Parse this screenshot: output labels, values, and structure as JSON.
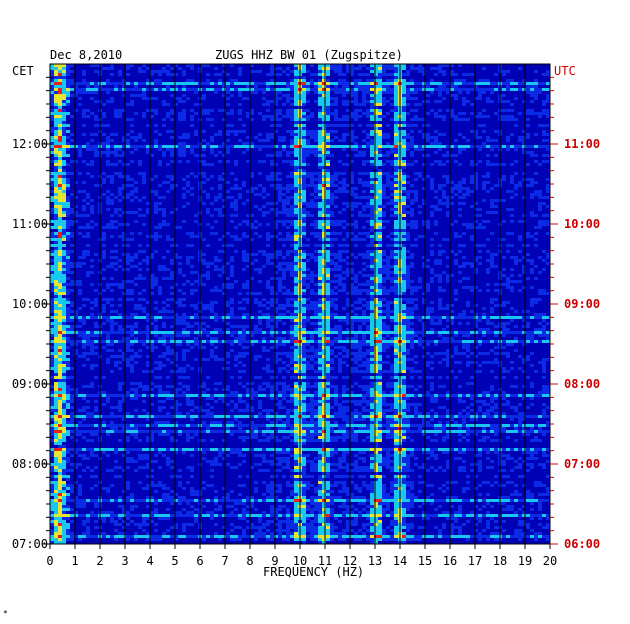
{
  "chart_data": {
    "type": "heatmap",
    "title": "ZUGS HHZ BW 01 (Zugspitze)",
    "date": "Dec 8,2010",
    "xlabel": "FREQUENCY (HZ)",
    "left_axis_label": "CET",
    "right_axis_label": "UTC",
    "xlim": [
      0,
      20
    ],
    "x_ticks": [
      "0",
      "1",
      "2",
      "3",
      "4",
      "5",
      "6",
      "7",
      "8",
      "9",
      "10",
      "11",
      "12",
      "13",
      "14",
      "15",
      "16",
      "17",
      "18",
      "19",
      "20"
    ],
    "y_ticks_left": [
      "07:00",
      "08:00",
      "09:00",
      "10:00",
      "11:00",
      "12:00"
    ],
    "y_ticks_right": [
      "06:00",
      "07:00",
      "08:00",
      "09:00",
      "10:00",
      "11:00"
    ],
    "time_range_cet": [
      "07:00",
      "12:50"
    ],
    "strong_bands_hz": [
      0.3,
      9.9,
      10.9,
      13.0,
      13.9
    ],
    "colors": {
      "background": "#0000b4",
      "low": "#0a2ae6",
      "mid": "#19c8f0",
      "high": "#e6e632",
      "peak": "#e61e1e",
      "utc_axis": "#cc0000",
      "cet_axis": "#000000"
    }
  }
}
